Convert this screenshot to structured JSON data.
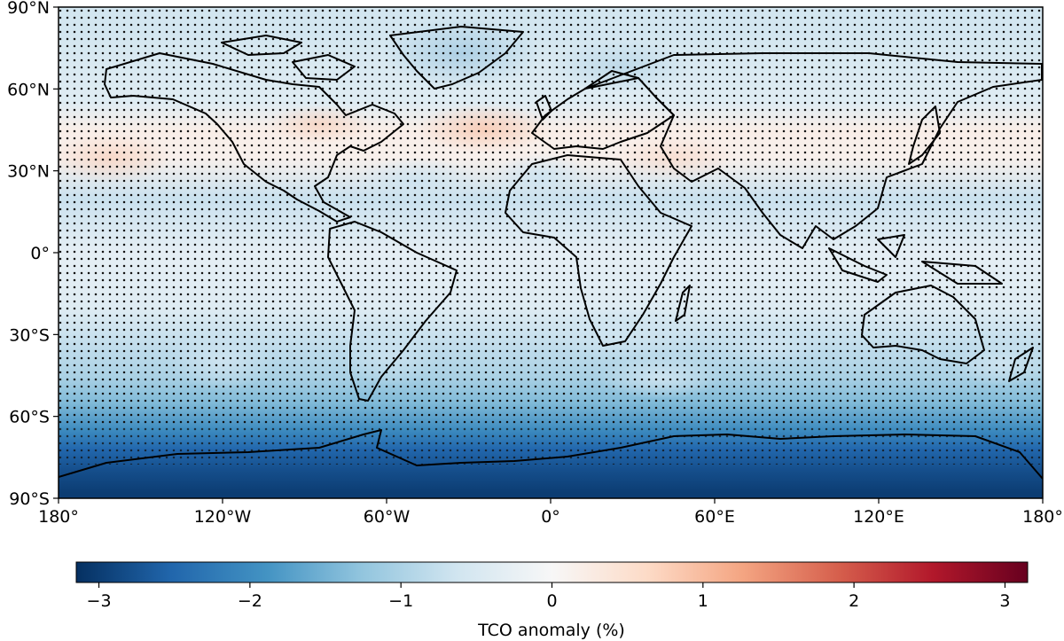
{
  "map": {
    "x_ticks": [
      "180°",
      "120°W",
      "60°W",
      "0°",
      "60°E",
      "120°E",
      "180°"
    ],
    "y_ticks": [
      "90°N",
      "60°N",
      "30°N",
      "0°",
      "30°S",
      "60°S",
      "90°S"
    ],
    "lon_range": [
      -180,
      180
    ],
    "lat_range": [
      -90,
      90
    ],
    "stippling": true
  },
  "colorbar": {
    "label": "TCO anomaly (%)",
    "ticks": [
      "−3",
      "−2",
      "−1",
      "0",
      "1",
      "2",
      "3"
    ],
    "tick_values": [
      -3,
      -2,
      -1,
      0,
      1,
      2,
      3
    ],
    "range": [
      -3.15,
      3.15
    ],
    "colormap": "RdBu_r",
    "stops": [
      "#053061",
      "#2166ac",
      "#4393c3",
      "#92c5de",
      "#d1e5f0",
      "#f7f7f7",
      "#fddbc7",
      "#f4a582",
      "#d6604d",
      "#b2182b",
      "#67001f"
    ]
  },
  "chart_data": {
    "type": "heatmap",
    "title": "",
    "colorbar_label": "TCO anomaly (%)",
    "x_range": [
      -180,
      180
    ],
    "y_range": [
      -90,
      90
    ],
    "color_range": [
      -3.15,
      3.15
    ],
    "zonal_profile": [
      {
        "lat": 80,
        "value": -0.6
      },
      {
        "lat": 70,
        "value": -0.5
      },
      {
        "lat": 55,
        "value": -0.4
      },
      {
        "lat": 45,
        "value": 0.2
      },
      {
        "lat": 35,
        "value": 0.15
      },
      {
        "lat": 20,
        "value": -0.7
      },
      {
        "lat": 0,
        "value": -0.3
      },
      {
        "lat": -20,
        "value": -0.4
      },
      {
        "lat": -35,
        "value": -0.8
      },
      {
        "lat": -45,
        "value": -1.0
      },
      {
        "lat": -55,
        "value": -1.4
      },
      {
        "lat": -65,
        "value": -2.0
      },
      {
        "lat": -72,
        "value": -2.5
      },
      {
        "lat": -80,
        "value": -2.8
      },
      {
        "lat": -88,
        "value": -3.0
      }
    ]
  }
}
